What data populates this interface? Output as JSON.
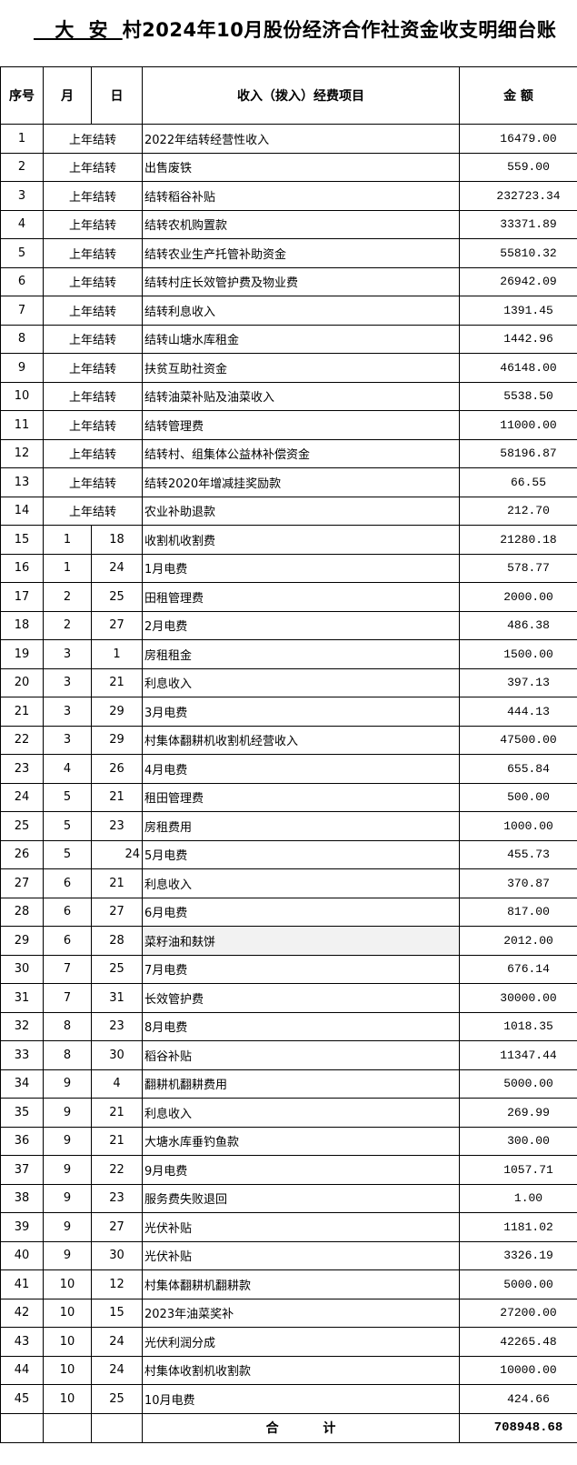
{
  "title": {
    "village": "   大  安  ",
    "rest": "村2024年10月股份经济合作社资金收支明细台账"
  },
  "headers": {
    "seq": "序号",
    "month": "月",
    "day": "日",
    "item": "收入（拨入）经费项目",
    "amount": "金  额"
  },
  "rows": [
    {
      "seq": "1",
      "carry": "上年结转",
      "item": "2022年结转经营性收入",
      "amount": "16479.00"
    },
    {
      "seq": "2",
      "carry": "上年结转",
      "item": "出售废铁",
      "amount": "559.00"
    },
    {
      "seq": "3",
      "carry": "上年结转",
      "item": "结转稻谷补贴",
      "amount": "232723.34"
    },
    {
      "seq": "4",
      "carry": "上年结转",
      "item": "结转农机购置款",
      "amount": "33371.89"
    },
    {
      "seq": "5",
      "carry": "上年结转",
      "item": "结转农业生产托管补助资金",
      "amount": "55810.32"
    },
    {
      "seq": "6",
      "carry": "上年结转",
      "item": "结转村庄长效管护费及物业费",
      "amount": "26942.09"
    },
    {
      "seq": "7",
      "carry": "上年结转",
      "item": "结转利息收入",
      "amount": "1391.45"
    },
    {
      "seq": "8",
      "carry": "上年结转",
      "item": "结转山塘水库租金",
      "amount": "1442.96"
    },
    {
      "seq": "9",
      "carry": "上年结转",
      "item": "扶贫互助社资金",
      "amount": "46148.00"
    },
    {
      "seq": "10",
      "carry": "上年结转",
      "item": "结转油菜补贴及油菜收入",
      "amount": "5538.50"
    },
    {
      "seq": "11",
      "carry": "上年结转",
      "item": "结转管理费",
      "amount": "11000.00"
    },
    {
      "seq": "12",
      "carry": "上年结转",
      "item": "结转村、组集体公益林补偿资金",
      "amount": "58196.87"
    },
    {
      "seq": "13",
      "carry": "上年结转",
      "item": "结转2020年增减挂奖励款",
      "amount": "66.55"
    },
    {
      "seq": "14",
      "carry": "上年结转",
      "item": "农业补助退款",
      "amount": "212.70"
    },
    {
      "seq": "15",
      "month": "1",
      "day": "18",
      "item": "收割机收割费",
      "amount": "21280.18"
    },
    {
      "seq": "16",
      "month": "1",
      "day": "24",
      "item": "1月电费",
      "amount": "578.77"
    },
    {
      "seq": "17",
      "month": "2",
      "day": "25",
      "item": "田租管理费",
      "amount": "2000.00"
    },
    {
      "seq": "18",
      "month": "2",
      "day": "27",
      "item": "2月电费",
      "amount": "486.38"
    },
    {
      "seq": "19",
      "month": "3",
      "day": "1",
      "item": "房租租金",
      "amount": "1500.00"
    },
    {
      "seq": "20",
      "month": "3",
      "day": "21",
      "item": "利息收入",
      "amount": "397.13"
    },
    {
      "seq": "21",
      "month": "3",
      "day": "29",
      "item": "3月电费",
      "amount": "444.13"
    },
    {
      "seq": "22",
      "month": "3",
      "day": "29",
      "item": "村集体翻耕机收割机经营收入",
      "amount": "47500.00"
    },
    {
      "seq": "23",
      "month": "4",
      "day": "26",
      "item": "4月电费",
      "amount": "655.84"
    },
    {
      "seq": "24",
      "month": "5",
      "day": "21",
      "item": "租田管理费",
      "amount": "500.00"
    },
    {
      "seq": "25",
      "month": "5",
      "day": "23",
      "item": "房租费用",
      "amount": "1000.00"
    },
    {
      "seq": "26",
      "month": "5",
      "day": "24",
      "item": "5月电费",
      "amount": "455.73",
      "day_align": "right"
    },
    {
      "seq": "27",
      "month": "6",
      "day": "21",
      "item": "利息收入",
      "amount": "370.87"
    },
    {
      "seq": "28",
      "month": "6",
      "day": "27",
      "item": "6月电费",
      "amount": "817.00"
    },
    {
      "seq": "29",
      "month": "6",
      "day": "28",
      "item": "菜籽油和麸饼",
      "amount": "2012.00",
      "highlight": true
    },
    {
      "seq": "30",
      "month": "7",
      "day": "25",
      "item": "7月电费",
      "amount": "676.14"
    },
    {
      "seq": "31",
      "month": "7",
      "day": "31",
      "item": "长效管护费",
      "amount": "30000.00"
    },
    {
      "seq": "32",
      "month": "8",
      "day": "23",
      "item": "8月电费",
      "amount": "1018.35"
    },
    {
      "seq": "33",
      "month": "8",
      "day": "30",
      "item": "稻谷补贴",
      "amount": "11347.44"
    },
    {
      "seq": "34",
      "month": "9",
      "day": "4",
      "item": "翻耕机翻耕费用",
      "amount": "5000.00"
    },
    {
      "seq": "35",
      "month": "9",
      "day": "21",
      "item": "利息收入",
      "amount": "269.99"
    },
    {
      "seq": "36",
      "month": "9",
      "day": "21",
      "item": "大塘水库垂钓鱼款",
      "amount": "300.00"
    },
    {
      "seq": "37",
      "month": "9",
      "day": "22",
      "item": "9月电费",
      "amount": "1057.71"
    },
    {
      "seq": "38",
      "month": "9",
      "day": "23",
      "item": "服务费失败退回",
      "amount": "1.00"
    },
    {
      "seq": "39",
      "month": "9",
      "day": "27",
      "item": "光伏补贴",
      "amount": "1181.02"
    },
    {
      "seq": "40",
      "month": "9",
      "day": "30",
      "item": "光伏补贴",
      "amount": "3326.19"
    },
    {
      "seq": "41",
      "month": "10",
      "day": "12",
      "item": "村集体翻耕机翻耕款",
      "amount": "5000.00"
    },
    {
      "seq": "42",
      "month": "10",
      "day": "15",
      "item": "2023年油菜奖补",
      "amount": "27200.00"
    },
    {
      "seq": "43",
      "month": "10",
      "day": "24",
      "item": "光伏利润分成",
      "amount": "42265.48"
    },
    {
      "seq": "44",
      "month": "10",
      "day": "24",
      "item": "村集体收割机收割款",
      "amount": "10000.00"
    },
    {
      "seq": "45",
      "month": "10",
      "day": "25",
      "item": "10月电费",
      "amount": "424.66"
    }
  ],
  "total": {
    "label": "合          计",
    "amount": "708948.68"
  }
}
